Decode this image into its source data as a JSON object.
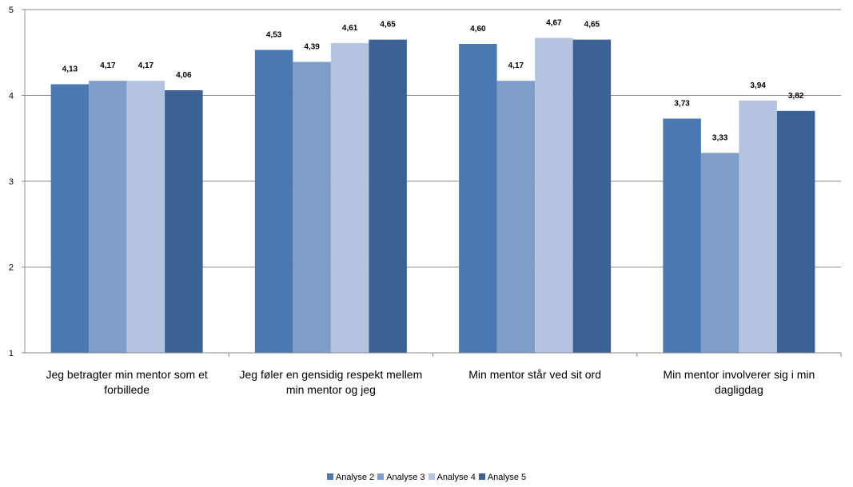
{
  "chart_data": {
    "type": "bar",
    "categories": [
      [
        "Jeg betragter min mentor som et",
        "forbillede"
      ],
      [
        "Jeg føler en gensidig respekt mellem",
        "min mentor og jeg"
      ],
      [
        "Min mentor står ved sit ord"
      ],
      [
        "Min mentor involverer sig i min",
        "dagligdag"
      ]
    ],
    "series": [
      {
        "name": "Analyse 2",
        "color": "#4a78b3",
        "values": [
          4.13,
          4.53,
          4.6,
          3.73
        ],
        "labels": [
          "4,13",
          "4,53",
          "4,60",
          "3,73"
        ]
      },
      {
        "name": "Analyse 3",
        "color": "#7f9dc9",
        "values": [
          4.17,
          4.39,
          4.17,
          3.33
        ],
        "labels": [
          "4,17",
          "4,39",
          "4,17",
          "3,33"
        ]
      },
      {
        "name": "Analyse 4",
        "color": "#b4c4e0",
        "values": [
          4.17,
          4.61,
          4.67,
          3.94
        ],
        "labels": [
          "4,17",
          "4,61",
          "4,67",
          "3,94"
        ]
      },
      {
        "name": "Analyse 5",
        "color": "#3c6194",
        "values": [
          4.06,
          4.65,
          4.65,
          3.82
        ],
        "labels": [
          "4,06",
          "4,65",
          "4,65",
          "3,82"
        ]
      }
    ],
    "yticks": [
      "1",
      "2",
      "3",
      "4",
      "5"
    ],
    "ylim": [
      1,
      5
    ],
    "grid": true,
    "legend_position": "bottom"
  }
}
